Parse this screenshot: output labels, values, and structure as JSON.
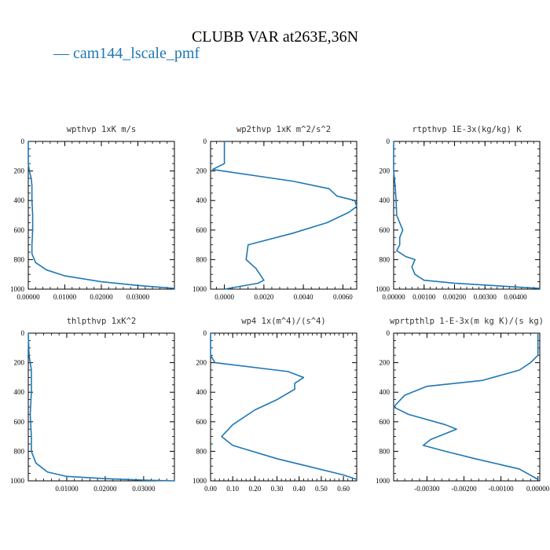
{
  "figure": {
    "title": "CLUBB VAR at263E,36N",
    "legend": [
      {
        "label": "— cam144_lscale_pmf",
        "color": "#1f77b4"
      }
    ]
  },
  "chart_data": [
    {
      "type": "line",
      "title": "wpthvp   1xK m/s",
      "xlim": [
        0,
        0.04
      ],
      "ylim": [
        1000,
        0
      ],
      "xticks": [
        0,
        0.01,
        0.02,
        0.03
      ],
      "xtick_labels": [
        "0.00000",
        "0.01000",
        "0.02000",
        "0.03000"
      ],
      "yticks": [
        0,
        200,
        400,
        600,
        800,
        1000
      ],
      "ytick_labels": [
        "0",
        "200",
        "400",
        "600",
        "800",
        "1000"
      ],
      "series": [
        {
          "color": "#1f77b4",
          "points": [
            [
              0,
              0
            ],
            [
              0,
              150
            ],
            [
              0.0003,
              200
            ],
            [
              0.0008,
              250
            ],
            [
              0.001,
              300
            ],
            [
              0.001,
              400
            ],
            [
              0.0012,
              500
            ],
            [
              0.0012,
              600
            ],
            [
              0.001,
              700
            ],
            [
              0.001,
              760
            ],
            [
              0.002,
              820
            ],
            [
              0.005,
              870
            ],
            [
              0.01,
              910
            ],
            [
              0.02,
              950
            ],
            [
              0.03,
              975
            ],
            [
              0.04,
              995
            ]
          ]
        }
      ]
    },
    {
      "type": "line",
      "title": "wp2thvp   1xK m^2/s^2",
      "xlim": [
        -0.0007,
        0.0067
      ],
      "ylim": [
        1000,
        0
      ],
      "xticks": [
        0,
        0.002,
        0.004,
        0.006
      ],
      "xtick_labels": [
        "0.0000",
        "0.0020",
        "0.0040",
        "0.0060"
      ],
      "yticks": [
        0,
        200,
        400,
        600,
        800,
        1000
      ],
      "ytick_labels": [
        "0",
        "200",
        "400",
        "600",
        "800",
        "1000"
      ],
      "series": [
        {
          "color": "#1f77b4",
          "points": [
            [
              0,
              0
            ],
            [
              0,
              150
            ],
            [
              -0.0006,
              190
            ],
            [
              0.0035,
              270
            ],
            [
              0.0053,
              320
            ],
            [
              0.0057,
              370
            ],
            [
              0.0066,
              400
            ],
            [
              0.0067,
              440
            ],
            [
              0.0063,
              480
            ],
            [
              0.0052,
              550
            ],
            [
              0.0035,
              620
            ],
            [
              0.0012,
              700
            ],
            [
              0.0011,
              800
            ],
            [
              0.0016,
              860
            ],
            [
              0.002,
              940
            ],
            [
              0.0017,
              960
            ],
            [
              0,
              1000
            ]
          ]
        }
      ]
    },
    {
      "type": "line",
      "title": "rtpthvp   1E-3x(kg/kg) K",
      "xlim": [
        0,
        0.0048
      ],
      "ylim": [
        1000,
        0
      ],
      "xticks": [
        0,
        0.001,
        0.002,
        0.003,
        0.004
      ],
      "xtick_labels": [
        "0.00000",
        "0.00100",
        "0.00200",
        "0.00300",
        "0.00400"
      ],
      "yticks": [
        0,
        200,
        400,
        600,
        800,
        1000
      ],
      "ytick_labels": [
        "0",
        "200",
        "400",
        "600",
        "800",
        "1000"
      ],
      "series": [
        {
          "color": "#1f77b4",
          "points": [
            [
              0,
              0
            ],
            [
              0,
              200
            ],
            [
              5e-05,
              300
            ],
            [
              8e-05,
              400
            ],
            [
              0.0001,
              500
            ],
            [
              0.0002,
              550
            ],
            [
              0.0003,
              600
            ],
            [
              0.0002,
              650
            ],
            [
              0.0002,
              700
            ],
            [
              0.0001,
              740
            ],
            [
              0.0004,
              780
            ],
            [
              0.0007,
              800
            ],
            [
              0.0006,
              850
            ],
            [
              0.0007,
              900
            ],
            [
              0.001,
              940
            ],
            [
              0.002,
              960
            ],
            [
              0.004,
              985
            ],
            [
              0.0048,
              995
            ]
          ]
        }
      ]
    },
    {
      "type": "line",
      "title": "thlpthvp   1xK^2",
      "xlim": [
        0,
        0.038
      ],
      "ylim": [
        1000,
        0
      ],
      "xticks": [
        0.01,
        0.02,
        0.03
      ],
      "xtick_labels": [
        "0.01000",
        "0.02000",
        "0.03000"
      ],
      "yticks": [
        0,
        200,
        400,
        600,
        800,
        1000
      ],
      "ytick_labels": [
        "0",
        "200",
        "400",
        "600",
        "800",
        "1000"
      ],
      "series": [
        {
          "color": "#1f77b4",
          "points": [
            [
              0,
              0
            ],
            [
              0.0002,
              150
            ],
            [
              0.0008,
              250
            ],
            [
              0.0008,
              400
            ],
            [
              0.0005,
              550
            ],
            [
              0.0008,
              700
            ],
            [
              0.0008,
              800
            ],
            [
              0.002,
              880
            ],
            [
              0.005,
              940
            ],
            [
              0.01,
              970
            ],
            [
              0.02,
              985
            ],
            [
              0.03,
              995
            ],
            [
              0.038,
              1000
            ]
          ]
        }
      ]
    },
    {
      "type": "line",
      "title": "wp4   1x(m^4)/(s^4)",
      "xlim": [
        0,
        0.66
      ],
      "ylim": [
        1000,
        0
      ],
      "xticks": [
        0,
        0.1,
        0.2,
        0.3,
        0.4,
        0.5,
        0.6
      ],
      "xtick_labels": [
        "0.00",
        "0.10",
        "0.20",
        "0.30",
        "0.40",
        "0.50",
        "0.60"
      ],
      "yticks": [
        0,
        200,
        400,
        600,
        800,
        1000
      ],
      "ytick_labels": [
        "0",
        "200",
        "400",
        "600",
        "800",
        "1000"
      ],
      "series": [
        {
          "color": "#1f77b4",
          "points": [
            [
              0,
              0
            ],
            [
              0,
              150
            ],
            [
              0.02,
              200
            ],
            [
              0.35,
              260
            ],
            [
              0.42,
              300
            ],
            [
              0.38,
              340
            ],
            [
              0.38,
              380
            ],
            [
              0.3,
              450
            ],
            [
              0.2,
              520
            ],
            [
              0.1,
              620
            ],
            [
              0.05,
              700
            ],
            [
              0.1,
              760
            ],
            [
              0.3,
              850
            ],
            [
              0.6,
              960
            ],
            [
              0.66,
              990
            ]
          ]
        }
      ]
    },
    {
      "type": "line",
      "title": "wprtpthlp   1-E-3x(m kg K)/(s kg)",
      "xlim": [
        -0.0039,
        5e-05
      ],
      "ylim": [
        1000,
        0
      ],
      "xticks": [
        -0.003,
        -0.002,
        -0.001,
        0
      ],
      "xtick_labels": [
        "-0.00300",
        "-0.00200",
        "-0.00100",
        "0.00000"
      ],
      "yticks": [
        0,
        200,
        400,
        600,
        800,
        1000
      ],
      "ytick_labels": [
        "0",
        "200",
        "400",
        "600",
        "800",
        "1000"
      ],
      "series": [
        {
          "color": "#1f77b4",
          "points": [
            [
              0,
              0
            ],
            [
              0,
              150
            ],
            [
              -0.0002,
              200
            ],
            [
              -0.0005,
              250
            ],
            [
              -0.0015,
              320
            ],
            [
              -0.003,
              360
            ],
            [
              -0.0036,
              420
            ],
            [
              -0.0039,
              500
            ],
            [
              -0.0035,
              550
            ],
            [
              -0.0025,
              620
            ],
            [
              -0.0022,
              650
            ],
            [
              -0.0029,
              720
            ],
            [
              -0.0031,
              760
            ],
            [
              -0.0025,
              800
            ],
            [
              -0.0017,
              850
            ],
            [
              -0.0005,
              920
            ],
            [
              0,
              990
            ]
          ]
        }
      ]
    }
  ]
}
